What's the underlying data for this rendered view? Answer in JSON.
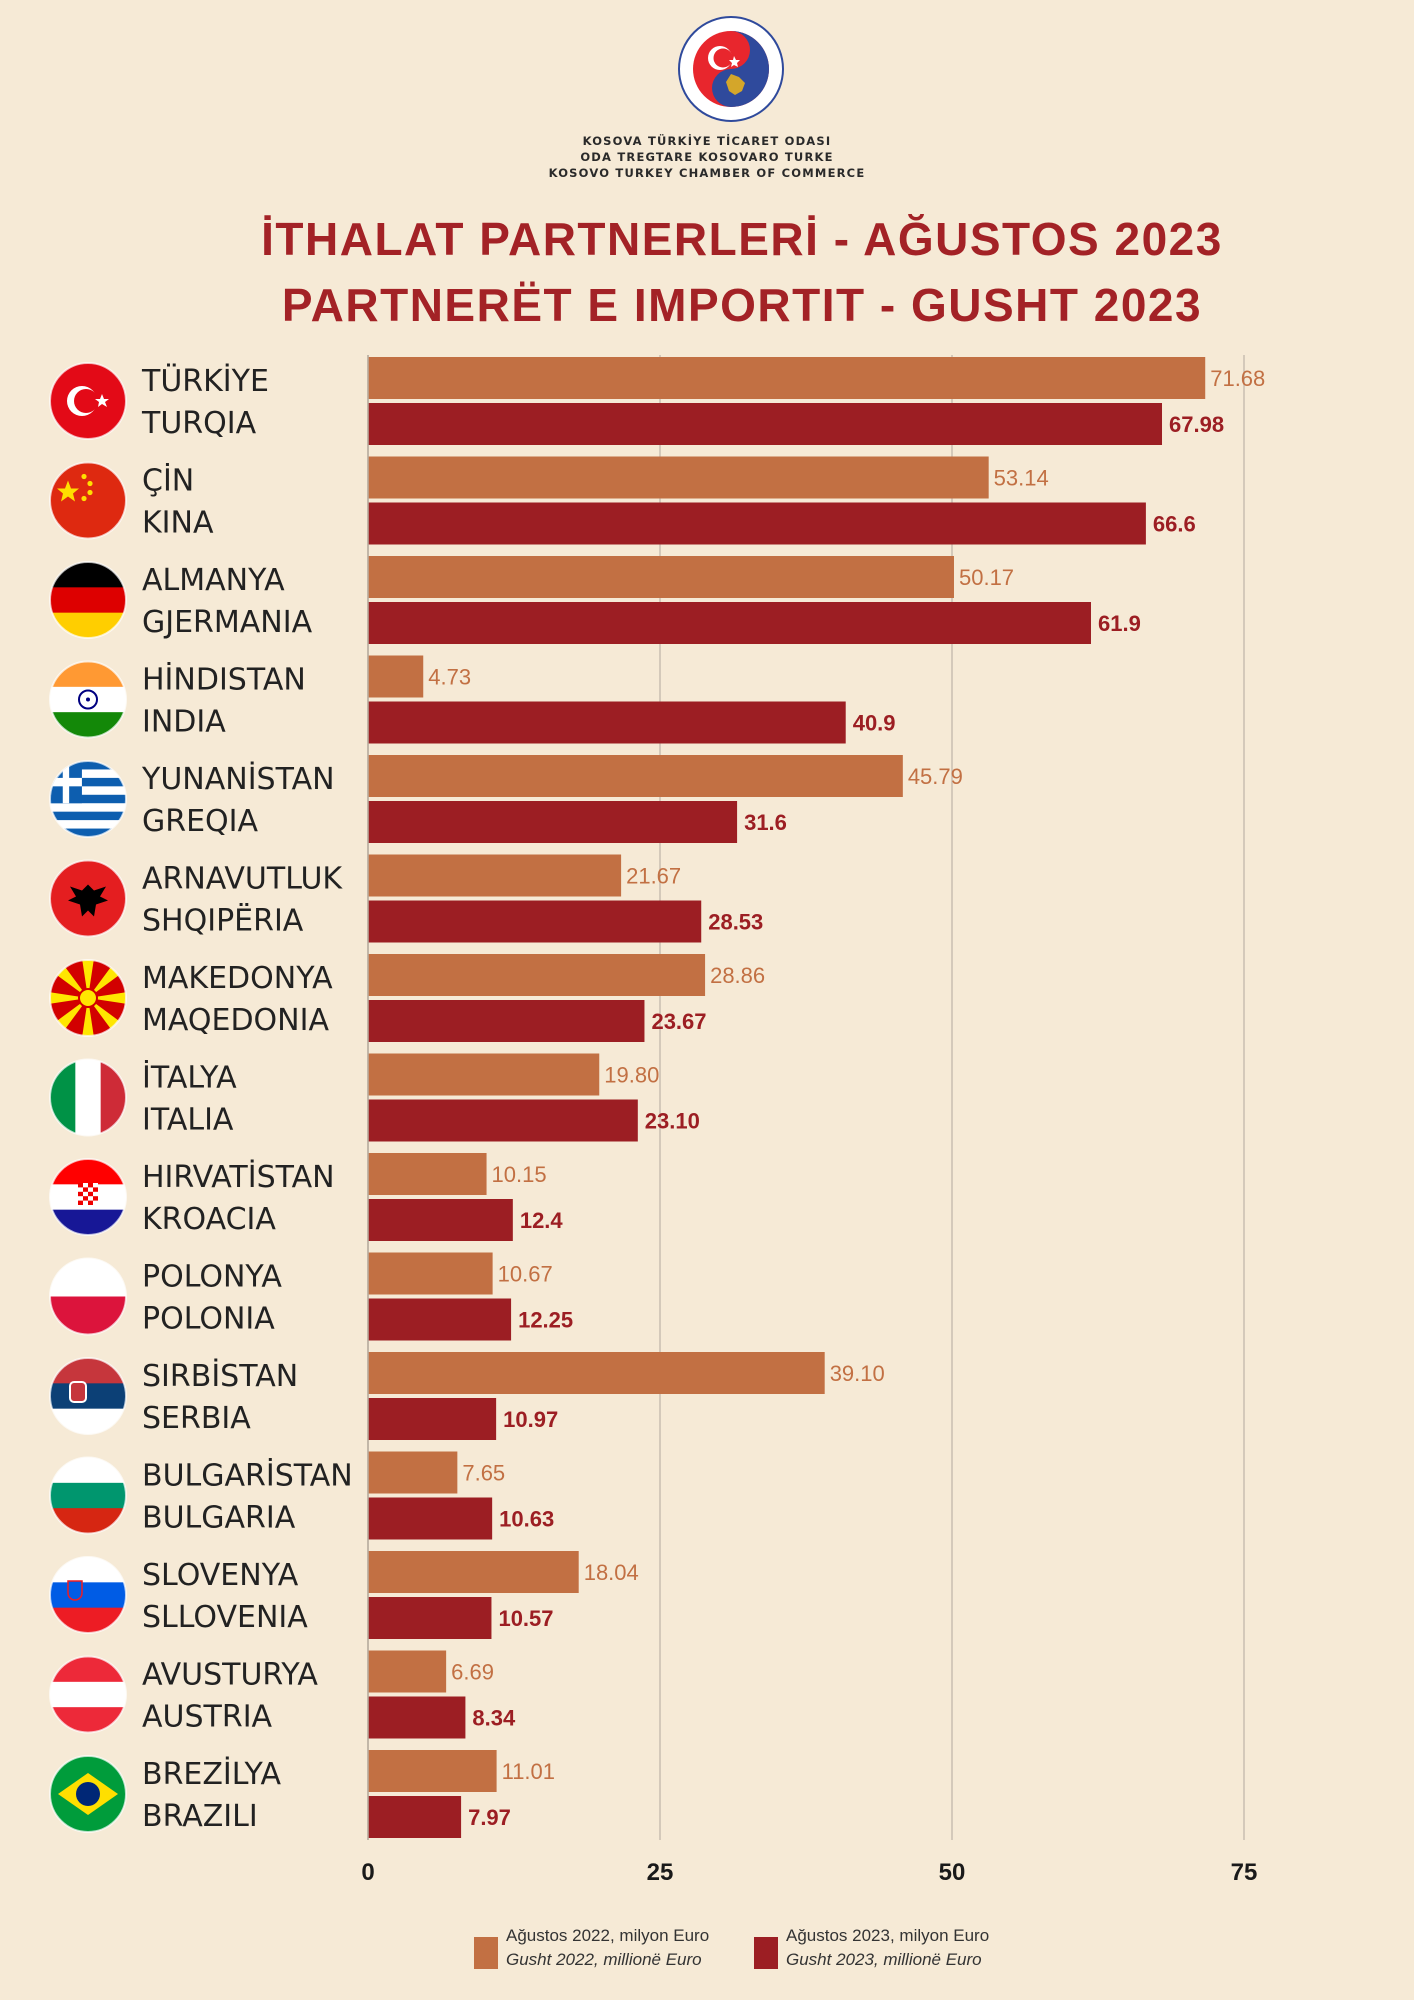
{
  "header": {
    "org_lines": [
      "KOSOVA TÜRKİYE TİCARET ODASI",
      "ODA TREGTARE KOSOVARO TURKE",
      "KOSOVO TURKEY CHAMBER OF COMMERCE"
    ],
    "logo_text": "ODA TREGTARE KOSOVARO TURKE • KOSOVA TÜRKİYE TİCARET ODASI",
    "title_line1": "İTHALAT PARTNERLERİ - AĞUSTOS 2023",
    "title_line2": "PARTNERËT E IMPORTIT - GUSHT 2023"
  },
  "colors": {
    "background": "#f6ead6",
    "series_2022": "#c27043",
    "series_2023": "#9c1e23",
    "title": "#a32226",
    "gridline": "#c8beb1"
  },
  "legend": [
    {
      "line1": "Ağustos  2022, milyon Euro",
      "line2": "Gusht 2022, millionë Euro",
      "color": "#c27043"
    },
    {
      "line1": "Ağustos 2023, milyon Euro",
      "line2": "Gusht 2023, millionë Euro",
      "color": "#9c1e23"
    }
  ],
  "chart_data": {
    "type": "bar",
    "orientation": "horizontal",
    "categories": [
      {
        "tr": "TÜRKİYE",
        "sq": "TURQIA",
        "flag": "turkey-flag-icon"
      },
      {
        "tr": "ÇİN",
        "sq": "KINA",
        "flag": "china-flag-icon"
      },
      {
        "tr": "ALMANYA",
        "sq": "GJERMANIA",
        "flag": "germany-flag-icon"
      },
      {
        "tr": "HİNDISTAN",
        "sq": "INDIA",
        "flag": "india-flag-icon"
      },
      {
        "tr": "YUNANİSTAN",
        "sq": "GREQIA",
        "flag": "greece-flag-icon"
      },
      {
        "tr": "ARNAVUTLUK",
        "sq": "SHQIPËRIA",
        "flag": "albania-flag-icon"
      },
      {
        "tr": "MAKEDONYA",
        "sq": "MAQEDONIA",
        "flag": "macedonia-flag-icon"
      },
      {
        "tr": "İTALYA",
        "sq": "ITALIA",
        "flag": "italy-flag-icon"
      },
      {
        "tr": "HIRVATİSTAN",
        "sq": "KROACIA",
        "flag": "croatia-flag-icon"
      },
      {
        "tr": "POLONYA",
        "sq": "POLONIA",
        "flag": "poland-flag-icon"
      },
      {
        "tr": "SIRBİSTAN",
        "sq": "SERBIA",
        "flag": "serbia-flag-icon"
      },
      {
        "tr": "BULGARİSTAN",
        "sq": "BULGARIA",
        "flag": "bulgaria-flag-icon"
      },
      {
        "tr": "SLOVENYA",
        "sq": "SLLOVENIA",
        "flag": "slovenia-flag-icon"
      },
      {
        "tr": "AVUSTURYA",
        "sq": "AUSTRIA",
        "flag": "austria-flag-icon"
      },
      {
        "tr": "BREZİLYA",
        "sq": "BRAZILI",
        "flag": "brazil-flag-icon"
      }
    ],
    "series": [
      {
        "name": "Ağustos 2022, milyon Euro / Gusht 2022, millionë Euro",
        "values": [
          71.68,
          53.14,
          50.17,
          4.73,
          45.79,
          21.67,
          28.86,
          19.8,
          10.15,
          10.67,
          39.1,
          7.65,
          18.04,
          6.69,
          11.01
        ],
        "labels": [
          "71.68",
          "53.14",
          "50.17",
          "4.73",
          "45.79",
          "21.67",
          "28.86",
          "19.80",
          "10.15",
          "10.67",
          "39.10",
          "7.65",
          "18.04",
          "6.69",
          "11.01"
        ]
      },
      {
        "name": "Ağustos 2023, milyon Euro / Gusht 2023, millionë Euro",
        "values": [
          67.98,
          66.6,
          61.9,
          40.9,
          31.6,
          28.53,
          23.67,
          23.1,
          12.4,
          12.25,
          10.97,
          10.63,
          10.57,
          8.34,
          7.97
        ],
        "labels": [
          "67.98",
          "66.6",
          "61.9",
          "40.9",
          "31.6",
          "28.53",
          "23.67",
          "23.10",
          "12.4",
          "12.25",
          "10.97",
          "10.63",
          "10.57",
          "8.34",
          "7.97"
        ]
      }
    ],
    "xlim": [
      0,
      75
    ],
    "xticks": [
      "0",
      "25",
      "50",
      "75"
    ],
    "grid": true,
    "legend_position": "bottom"
  }
}
